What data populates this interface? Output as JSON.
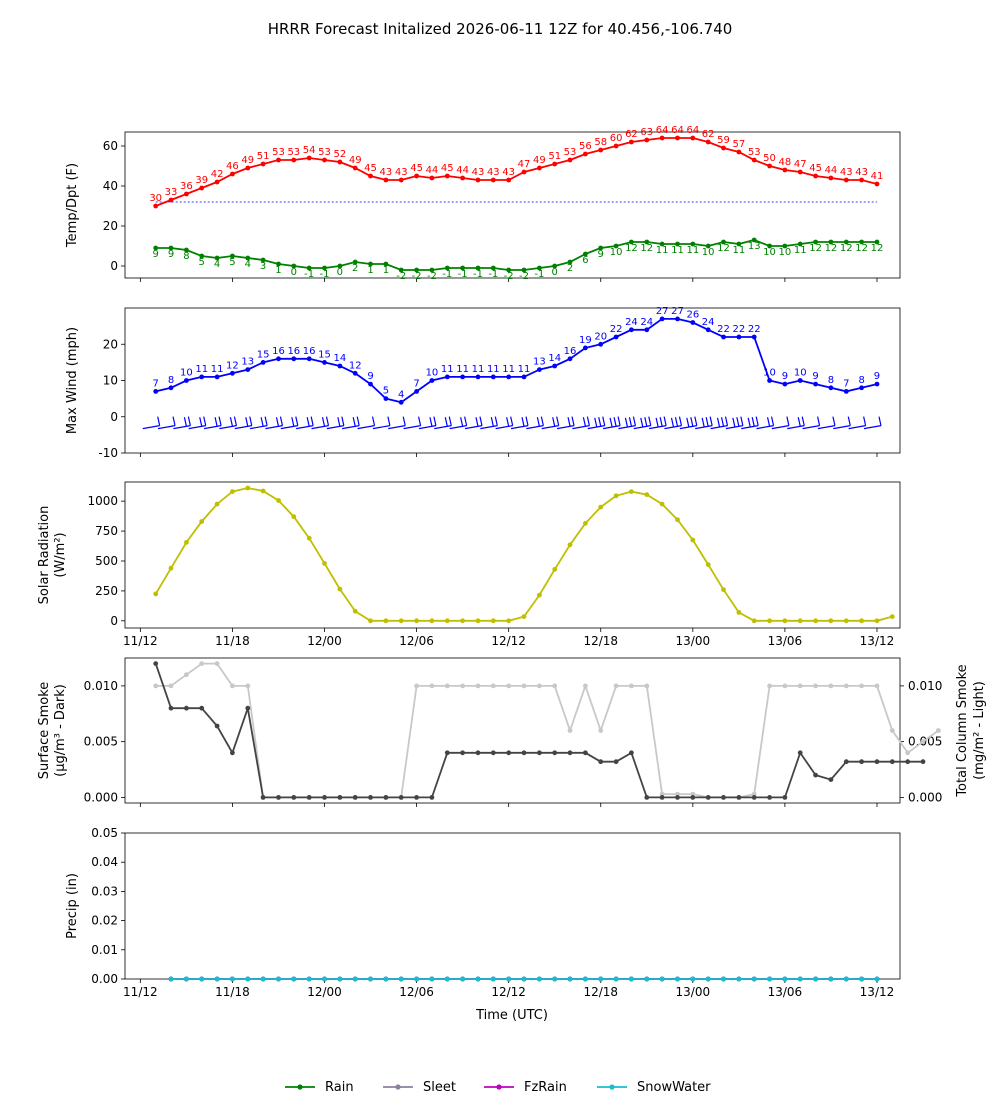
{
  "figure": {
    "title": "HRRR Forecast Initalized 2026-06-11 12Z for 40.456,-106.740",
    "xlabel": "Time (UTC)",
    "x_tick_labels": [
      "11/12",
      "11/18",
      "12/00",
      "12/06",
      "12/12",
      "12/18",
      "13/00",
      "13/06",
      "13/12"
    ],
    "x_tick_hours": [
      12,
      18,
      24,
      30,
      36,
      42,
      48,
      54,
      60
    ],
    "legend": [
      "Rain",
      "Sleet",
      "FzRain",
      "SnowWater"
    ]
  },
  "chart_data": [
    {
      "type": "line",
      "panel": "temperature",
      "ylabel": "Temp/Dpt (F)",
      "ylim": [
        -6,
        67
      ],
      "yticks": [
        0,
        20,
        40,
        60
      ],
      "x_hours_start": 13,
      "series": [
        {
          "color": "#ff0000",
          "values": [
            30,
            33,
            36,
            39,
            42,
            46,
            49,
            51,
            53,
            53,
            54,
            53,
            52,
            49,
            45,
            43,
            43,
            45,
            44,
            45,
            44,
            43,
            43,
            43,
            47,
            49,
            51,
            53,
            56,
            58,
            60,
            62,
            63,
            64,
            64,
            64,
            62,
            59,
            57,
            53,
            50,
            48,
            47,
            45,
            44,
            43,
            43,
            41
          ]
        },
        {
          "color": "#008000",
          "values": [
            9,
            9,
            8,
            5,
            4,
            5,
            4,
            3,
            1,
            0,
            -1,
            -1,
            0,
            2,
            1,
            1,
            -2,
            -2,
            -2,
            -1,
            -1,
            -1,
            -1,
            -2,
            -2,
            -1,
            0,
            2,
            6,
            9,
            10,
            12,
            12,
            11,
            11,
            11,
            10,
            12,
            11,
            13,
            10,
            10,
            11,
            12,
            12,
            12,
            12,
            12
          ]
        }
      ],
      "freezing_line": 32
    },
    {
      "type": "line",
      "panel": "wind",
      "ylabel": "Max Wind (mph)",
      "ylim": [
        -10,
        30
      ],
      "yticks": [
        -10,
        0,
        10,
        20
      ],
      "x_hours_start": 13,
      "series": [
        {
          "color": "#0000ff",
          "values": [
            7,
            8,
            10,
            11,
            11,
            12,
            13,
            15,
            16,
            16,
            16,
            15,
            14,
            12,
            9,
            5,
            4,
            7,
            10,
            11,
            11,
            11,
            11,
            11,
            11,
            13,
            14,
            16,
            19,
            20,
            22,
            24,
            24,
            27,
            27,
            26,
            24,
            22,
            22,
            22,
            10,
            9,
            10,
            9,
            8,
            7,
            8,
            9
          ]
        }
      ]
    },
    {
      "type": "line",
      "panel": "solar",
      "ylabel": "Solar Radiation",
      "ylabel2": "(W/m²)",
      "ylim": [
        -60,
        1160
      ],
      "yticks": [
        0,
        250,
        500,
        750,
        1000
      ],
      "x_hours_start": 13,
      "series": [
        {
          "color": "#bfbf00",
          "values": [
            225,
            440,
            655,
            830,
            975,
            1080,
            1110,
            1085,
            1005,
            870,
            690,
            480,
            265,
            80,
            0,
            0,
            0,
            0,
            0,
            0,
            0,
            0,
            0,
            0,
            35,
            215,
            430,
            635,
            815,
            950,
            1045,
            1080,
            1055,
            975,
            845,
            675,
            470,
            260,
            70,
            0,
            0,
            0,
            0,
            0,
            0,
            0,
            0,
            0,
            35
          ]
        }
      ]
    },
    {
      "type": "line",
      "panel": "smoke",
      "ylabel": "Surface Smoke",
      "ylabel2": "(μg/m³ - Dark)",
      "ylabel_right": "Total Column Smoke",
      "ylabel_right2": "(mg/m² - Light)",
      "ylim": [
        -0.0005,
        0.0125
      ],
      "yticks": [
        "0.000",
        "0.005",
        "0.010"
      ],
      "x_hours_start": 13,
      "series": [
        {
          "color": "#444444",
          "values": [
            0.012,
            0.008,
            0.008,
            0.008,
            0.0064,
            0.004,
            0.008,
            0,
            0,
            0,
            0,
            0,
            0,
            0,
            0,
            0,
            0,
            0,
            0,
            0.004,
            0.004,
            0.004,
            0.004,
            0.004,
            0.004,
            0.004,
            0.004,
            0.004,
            0.004,
            0.0032,
            0.0032,
            0.004,
            0,
            0,
            0,
            0,
            0,
            0,
            0,
            0,
            0,
            0,
            0.004,
            0.002,
            0.0016,
            0.0032,
            0.0032,
            0.0032,
            0.0032,
            0.0032,
            0.0032
          ]
        },
        {
          "color": "#c8c8c8",
          "values": [
            0.01,
            0.01,
            0.011,
            0.012,
            0.012,
            0.01,
            0.01,
            0,
            0,
            0,
            0,
            0,
            0,
            0,
            0,
            0,
            0,
            0.01,
            0.01,
            0.01,
            0.01,
            0.01,
            0.01,
            0.01,
            0.01,
            0.01,
            0.01,
            0.006,
            0.01,
            0.006,
            0.01,
            0.01,
            0.01,
            0.0003,
            0.0003,
            0.0003,
            0,
            0,
            0,
            0.0003,
            0.01,
            0.01,
            0.01,
            0.01,
            0.01,
            0.01,
            0.01,
            0.01,
            0.006,
            0.004,
            0.005,
            0.006
          ]
        }
      ]
    },
    {
      "type": "line",
      "panel": "precip",
      "ylabel": "Precip (in)",
      "ylim": [
        0,
        0.05
      ],
      "yticks": [
        "0.00",
        "0.01",
        "0.02",
        "0.03",
        "0.04",
        "0.05"
      ],
      "x_hours_start": 14,
      "series": [
        {
          "name": "Rain",
          "color": "#008000",
          "values": [
            0,
            0,
            0,
            0,
            0,
            0,
            0,
            0,
            0,
            0,
            0,
            0,
            0,
            0,
            0,
            0,
            0,
            0,
            0,
            0,
            0,
            0,
            0,
            0,
            0,
            0,
            0,
            0,
            0,
            0,
            0,
            0,
            0,
            0,
            0,
            0,
            0,
            0,
            0,
            0,
            0,
            0,
            0,
            0,
            0,
            0,
            0
          ]
        },
        {
          "name": "Sleet",
          "color": "#8c7fa0",
          "values": [
            0,
            0,
            0,
            0,
            0,
            0,
            0,
            0,
            0,
            0,
            0,
            0,
            0,
            0,
            0,
            0,
            0,
            0,
            0,
            0,
            0,
            0,
            0,
            0,
            0,
            0,
            0,
            0,
            0,
            0,
            0,
            0,
            0,
            0,
            0,
            0,
            0,
            0,
            0,
            0,
            0,
            0,
            0,
            0,
            0,
            0,
            0
          ]
        },
        {
          "name": "FzRain",
          "color": "#bf00bf",
          "values": [
            0,
            0,
            0,
            0,
            0,
            0,
            0,
            0,
            0,
            0,
            0,
            0,
            0,
            0,
            0,
            0,
            0,
            0,
            0,
            0,
            0,
            0,
            0,
            0,
            0,
            0,
            0,
            0,
            0,
            0,
            0,
            0,
            0,
            0,
            0,
            0,
            0,
            0,
            0,
            0,
            0,
            0,
            0,
            0,
            0,
            0,
            0
          ]
        },
        {
          "name": "SnowWater",
          "color": "#17becf",
          "values": [
            0,
            0,
            0,
            0,
            0,
            0,
            0,
            0,
            0,
            0,
            0,
            0,
            0,
            0,
            0,
            0,
            0,
            0,
            0,
            0,
            0,
            0,
            0,
            0,
            0,
            0,
            0,
            0,
            0,
            0,
            0,
            0,
            0,
            0,
            0,
            0,
            0,
            0,
            0,
            0,
            0,
            0,
            0,
            0,
            0,
            0,
            0
          ]
        }
      ]
    }
  ]
}
